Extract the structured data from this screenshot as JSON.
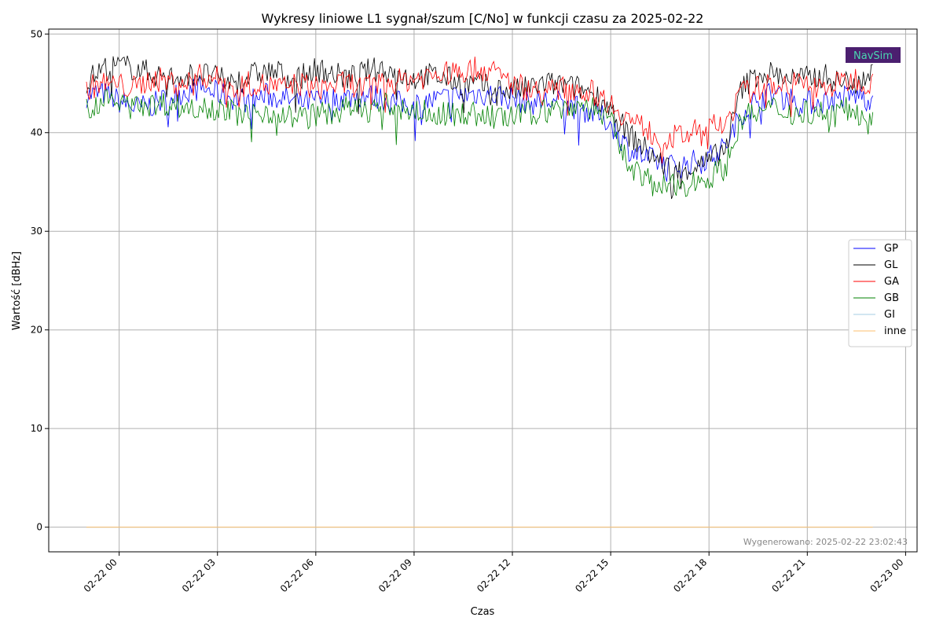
{
  "chart_data": {
    "type": "line",
    "title": "Wykresy liniowe L1 sygnał/szum [C/No] w funkcji czasu za 2025-02-22",
    "xlabel": "Czas",
    "ylabel": "Wartość [dBHz]",
    "x_unit": "hours relative to 2025-02-22 00:00",
    "xlim": [
      -2.15,
      24.35
    ],
    "ylim": [
      -2.5,
      50.5
    ],
    "x_tick_labels": [
      "02-22 00",
      "02-22 03",
      "02-22 06",
      "02-22 09",
      "02-22 12",
      "02-22 15",
      "02-22 18",
      "02-22 21",
      "02-23 00"
    ],
    "x_ticks": [
      0,
      3,
      6,
      9,
      12,
      15,
      18,
      21,
      24
    ],
    "y_ticks": [
      0,
      10,
      20,
      30,
      40,
      50
    ],
    "grid": true,
    "legend_position": "center-right",
    "x": [
      -1.0,
      -0.5,
      0.0,
      0.5,
      1.0,
      1.5,
      2.0,
      2.5,
      3.0,
      3.5,
      4.0,
      4.5,
      5.0,
      5.5,
      6.0,
      6.5,
      7.0,
      7.5,
      8.0,
      8.5,
      9.0,
      9.5,
      10.0,
      10.5,
      11.0,
      11.5,
      12.0,
      12.5,
      13.0,
      13.5,
      14.0,
      14.5,
      15.0,
      15.5,
      16.0,
      16.5,
      17.0,
      17.5,
      18.0,
      18.5,
      19.0,
      19.5,
      20.0,
      20.5,
      21.0,
      21.5,
      22.0,
      22.5,
      23.0
    ],
    "series": [
      {
        "name": "GP",
        "color": "#0000ff",
        "values": [
          43.8,
          44.0,
          43.2,
          42.5,
          42.8,
          43.5,
          44.2,
          44.5,
          44.0,
          43.5,
          43.2,
          43.8,
          43.5,
          43.0,
          43.2,
          43.4,
          43.6,
          43.8,
          43.5,
          43.0,
          42.8,
          43.2,
          43.5,
          43.8,
          44.0,
          43.8,
          43.5,
          43.0,
          43.2,
          43.0,
          42.5,
          42.0,
          41.0,
          38.5,
          37.5,
          37.0,
          36.5,
          37.0,
          37.5,
          38.5,
          42.0,
          43.5,
          44.0,
          43.5,
          43.0,
          43.2,
          43.5,
          43.8,
          43.5
        ]
      },
      {
        "name": "GL",
        "color": "#000000",
        "values": [
          45.2,
          46.5,
          46.8,
          46.5,
          46.0,
          45.5,
          45.8,
          46.0,
          45.5,
          45.0,
          45.8,
          46.2,
          46.0,
          45.5,
          46.5,
          46.0,
          45.5,
          46.2,
          46.5,
          46.0,
          45.5,
          45.8,
          45.5,
          45.0,
          44.8,
          44.5,
          44.2,
          44.5,
          45.0,
          44.8,
          44.5,
          44.0,
          42.5,
          40.0,
          38.5,
          37.0,
          36.0,
          36.5,
          37.0,
          38.5,
          44.5,
          46.0,
          46.0,
          45.5,
          45.5,
          45.8,
          45.0,
          45.5,
          46.0
        ]
      },
      {
        "name": "GA",
        "color": "#ff0000",
        "values": [
          44.5,
          45.0,
          44.8,
          44.5,
          45.5,
          45.2,
          45.0,
          45.8,
          45.5,
          44.5,
          45.0,
          44.8,
          44.5,
          45.0,
          44.5,
          44.8,
          45.0,
          44.5,
          45.0,
          45.2,
          45.5,
          45.8,
          46.0,
          46.2,
          46.5,
          46.0,
          45.0,
          44.5,
          44.0,
          44.5,
          44.5,
          44.0,
          43.0,
          41.5,
          40.5,
          39.5,
          39.5,
          40.0,
          40.5,
          41.0,
          44.0,
          44.5,
          45.0,
          45.0,
          44.8,
          44.5,
          45.0,
          45.5,
          45.0
        ]
      },
      {
        "name": "GB",
        "color": "#008000",
        "values": [
          42.5,
          43.2,
          43.0,
          43.5,
          42.8,
          43.0,
          42.5,
          42.8,
          42.5,
          42.0,
          41.8,
          42.2,
          41.8,
          41.5,
          41.8,
          42.0,
          42.5,
          42.2,
          42.8,
          42.5,
          42.2,
          42.0,
          41.8,
          42.0,
          41.8,
          41.5,
          41.5,
          42.0,
          42.2,
          42.5,
          42.8,
          42.5,
          41.0,
          37.0,
          35.5,
          34.5,
          34.5,
          35.0,
          35.5,
          36.5,
          41.5,
          42.0,
          42.5,
          42.0,
          42.2,
          42.0,
          42.5,
          42.0,
          42.0
        ]
      },
      {
        "name": "GI",
        "color": "#a6cee3",
        "values": [
          0.0,
          0.0,
          0.0,
          0.0,
          0.0,
          0.0,
          0.0,
          0.0,
          0.0,
          0.0,
          0.0,
          0.0,
          0.0,
          0.0,
          0.0,
          0.0,
          0.0,
          0.0,
          0.0,
          0.0,
          0.0,
          0.0,
          0.0,
          0.0,
          0.0,
          0.0,
          0.0,
          0.0,
          0.0,
          0.0,
          0.0,
          0.0,
          0.0,
          0.0,
          0.0,
          0.0,
          0.0,
          0.0,
          0.0,
          0.0,
          0.0,
          0.0,
          0.0,
          0.0,
          0.0,
          0.0,
          0.0,
          0.0,
          0.0
        ]
      },
      {
        "name": "inne",
        "color": "#fdbf6f",
        "values": [
          0.0,
          0.0,
          0.0,
          0.0,
          0.0,
          0.0,
          0.0,
          0.0,
          0.0,
          0.0,
          0.0,
          0.0,
          0.0,
          0.0,
          0.0,
          0.0,
          0.0,
          0.0,
          0.0,
          0.0,
          0.0,
          0.0,
          0.0,
          0.0,
          0.0,
          0.0,
          0.0,
          0.0,
          0.0,
          0.0,
          0.0,
          0.0,
          0.0,
          0.0,
          0.0,
          0.0,
          0.0,
          0.0,
          0.0,
          0.0,
          0.0,
          0.0,
          0.0,
          0.0,
          0.0,
          0.0,
          0.0,
          0.0,
          0.0
        ]
      }
    ],
    "footer_note": "Wygenerowano: 2025-02-22 23:02:43",
    "watermark": {
      "text": "NavSim",
      "background": "#4b1f6f",
      "color": "#4ad6b0"
    }
  }
}
